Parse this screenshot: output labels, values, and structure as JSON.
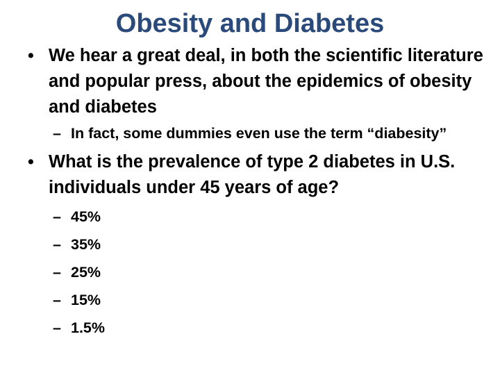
{
  "slide": {
    "title": "Obesity and Diabetes",
    "bullets": [
      {
        "text": "We hear a great deal, in both the scientific literature and popular press, about the epidemics of obesity and diabetes",
        "sub": [
          "In fact, some dummies even use the term “diabesity”"
        ]
      },
      {
        "text": "What is the prevalence of type 2 diabetes in U.S. individuals under 45 years of age?",
        "options": [
          "45%",
          "35%",
          "25%",
          "15%",
          "1.5%"
        ]
      }
    ],
    "bullet_symbol": "•",
    "dash_symbol": "–"
  }
}
